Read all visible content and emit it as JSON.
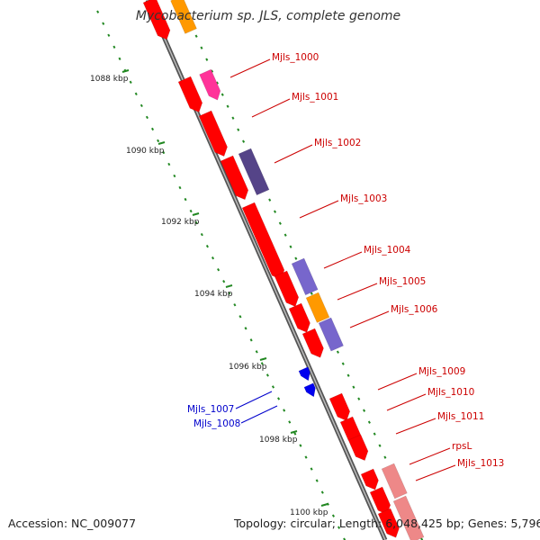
{
  "title": "Mycobacterium sp. JLS, complete genome",
  "accession_text": "Accession: NC_009077",
  "summary_text": "Topology: circular; Length: 6,048,425 bp; Genes: 5,796",
  "colors": {
    "cds": "#ff0000",
    "orange": "#ff9900",
    "magenta": "#ff3399",
    "dark_purple": "#554488",
    "purple": "#7766cc",
    "pink": "#ee8888",
    "blue": "#0000ee",
    "label_red": "#cc0000",
    "label_blue": "#0000cc",
    "tick_green": "#228822"
  },
  "scale_labels": [
    "1088 kbp",
    "1090 kbp",
    "1092 kbp",
    "1094 kbp",
    "1096 kbp",
    "1098 kbp",
    "1100 kbp"
  ],
  "gene_labels": [
    "Mjls_1000",
    "Mjls_1001",
    "Mjls_1002",
    "Mjls_1003",
    "Mjls_1004",
    "Mjls_1005",
    "Mjls_1006",
    "Mjls_1009",
    "Mjls_1010",
    "Mjls_1011",
    "rpsL",
    "Mjls_1013",
    "Mjls_1007",
    "Mjls_1008"
  ]
}
